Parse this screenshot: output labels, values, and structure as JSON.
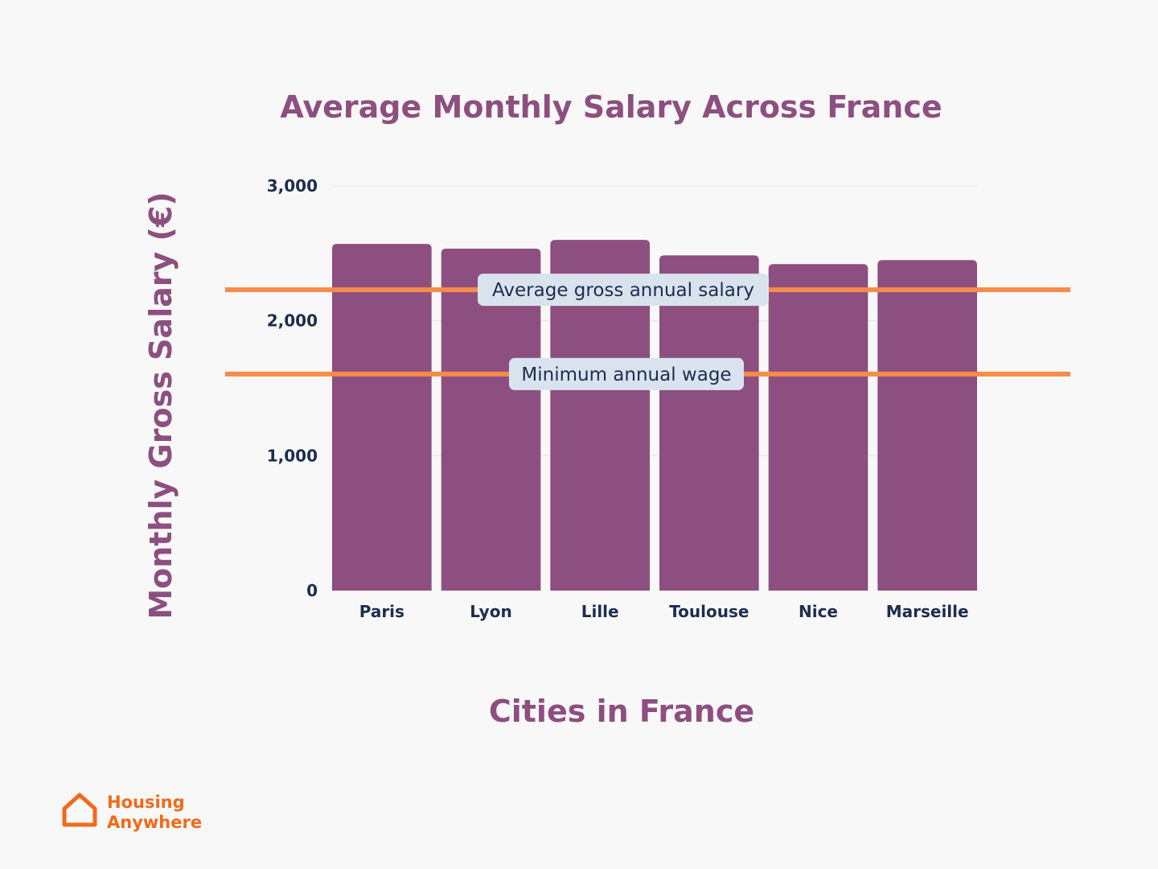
{
  "chart_data": {
    "type": "bar",
    "title": "Average Monthly Salary Across France",
    "xlabel": "Cities in France",
    "ylabel": "Monthly Gross Salary (€)",
    "categories": [
      "Paris",
      "Lyon",
      "Lille",
      "Toulouse",
      "Nice",
      "Marseille"
    ],
    "values": [
      2570,
      2535,
      2600,
      2485,
      2420,
      2450
    ],
    "ylim": [
      0,
      3000
    ],
    "yticks": [
      0,
      1000,
      2000,
      3000
    ],
    "ytick_labels": [
      "0",
      "1,000",
      "2,000",
      "3,000"
    ],
    "grid": true,
    "reference_lines": [
      {
        "label": "Average gross annual salary",
        "value": 2230
      },
      {
        "label": "Minimum annual wage",
        "value": 1605
      }
    ],
    "colors": {
      "bar": "#8d4f7f",
      "reference_line": "#f58c4b",
      "label_box": "#d9e3ee",
      "title": "#8d4f7f",
      "tick_text": "#1d2d4d",
      "grid": "#e3e3e3"
    }
  },
  "logo": {
    "line1": "Housing",
    "line2": "Anywhere",
    "color": "#f26a1b"
  }
}
